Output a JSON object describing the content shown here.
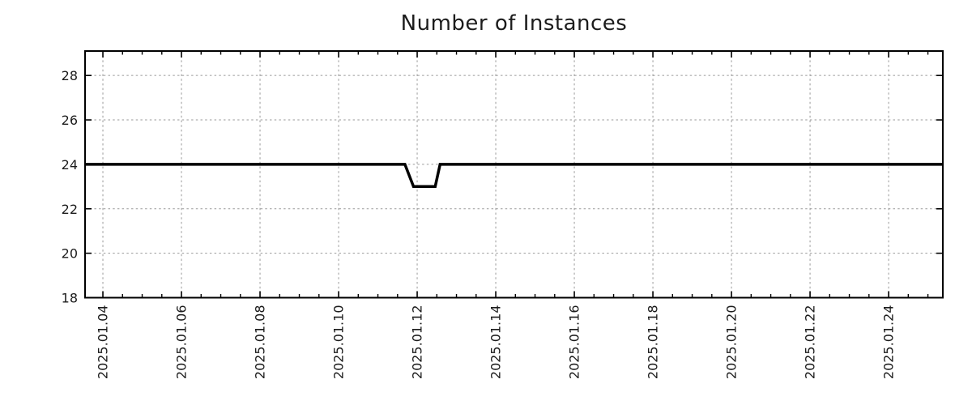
{
  "chart_data": {
    "type": "line",
    "title": "Number of Instances",
    "x_type": "datetime",
    "x_axis": {
      "base_date": "2025-01-04T00:00",
      "range_days": [
        -0.454,
        21.38
      ],
      "minor_tick_interval_days": 0.5,
      "major_ticks": [
        {
          "date": "2025-01-04T00:00",
          "label": "2025.01.04"
        },
        {
          "date": "2025-01-06T00:00",
          "label": "2025.01.06"
        },
        {
          "date": "2025-01-08T00:00",
          "label": "2025.01.08"
        },
        {
          "date": "2025-01-10T00:00",
          "label": "2025.01.10"
        },
        {
          "date": "2025-01-12T00:00",
          "label": "2025.01.12"
        },
        {
          "date": "2025-01-14T00:00",
          "label": "2025.01.14"
        },
        {
          "date": "2025-01-16T00:00",
          "label": "2025.01.16"
        },
        {
          "date": "2025-01-18T00:00",
          "label": "2025.01.18"
        },
        {
          "date": "2025-01-20T00:00",
          "label": "2025.01.20"
        },
        {
          "date": "2025-01-22T00:00",
          "label": "2025.01.22"
        },
        {
          "date": "2025-01-24T00:00",
          "label": "2025.01.24"
        }
      ]
    },
    "y_axis": {
      "range": [
        18,
        29.1
      ],
      "major_ticks": [
        18,
        20,
        22,
        24,
        26,
        28
      ]
    },
    "grid": {
      "show": true,
      "color": "#9a9a9a",
      "dash": "2.5,3.2"
    },
    "axis_color": "#000000",
    "series": [
      {
        "name": "instances",
        "color": "#000000",
        "line_width": 3.5,
        "points": [
          [
            "2025-01-03T13:00",
            24
          ],
          [
            "2025-01-11T16:30",
            24
          ],
          [
            "2025-01-11T21:45",
            23
          ],
          [
            "2025-01-12T11:00",
            23
          ],
          [
            "2025-01-12T14:00",
            24
          ],
          [
            "2025-01-25T09:00",
            24
          ]
        ]
      }
    ]
  }
}
